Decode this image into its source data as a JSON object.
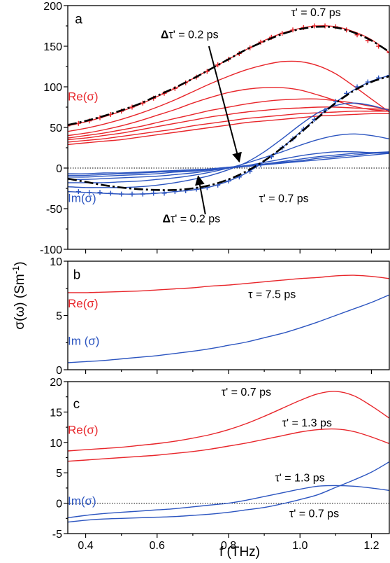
{
  "figure": {
    "ylabel": "σ(ω) (Sm",
    "ylabel_sup": "-1",
    "ylabel_tail": ")",
    "xlabel": "f (THz)"
  },
  "colors": {
    "re": "#e8262b",
    "im": "#2c55c0",
    "fit": "#000000",
    "axis": "#000000"
  },
  "chart_data": [
    {
      "panel": "a",
      "type": "line",
      "xlim": [
        0.35,
        1.25
      ],
      "ylim": [
        -100,
        200
      ],
      "x_ticks": [
        0.4,
        0.6,
        0.8,
        1.0,
        1.2
      ],
      "y_ticks": [
        -100,
        -50,
        0,
        50,
        100,
        150,
        200
      ],
      "y_tick_labels": [
        "-100",
        "-50",
        "0",
        "50",
        "100",
        "150",
        "200"
      ],
      "zero_line": true,
      "grid": false,
      "x": [
        0.35,
        0.4,
        0.45,
        0.5,
        0.55,
        0.6,
        0.65,
        0.7,
        0.75,
        0.8,
        0.85,
        0.9,
        0.95,
        1.0,
        1.05,
        1.1,
        1.15,
        1.2,
        1.25
      ],
      "series": [
        {
          "group": "re",
          "values": [
            52,
            57,
            63,
            70,
            78,
            88,
            98,
            110,
            122,
            134,
            146,
            157,
            166,
            172,
            175,
            174,
            168,
            158,
            142
          ]
        },
        {
          "group": "re",
          "values": [
            45,
            49,
            54,
            60,
            67,
            75,
            84,
            94,
            104,
            113,
            121,
            127,
            131,
            131,
            126,
            116,
            101,
            85,
            69
          ]
        },
        {
          "group": "re",
          "values": [
            40,
            43,
            47,
            52,
            58,
            65,
            72,
            80,
            87,
            93,
            97,
            99,
            99,
            96,
            90,
            83,
            76,
            72,
            70
          ]
        },
        {
          "group": "re",
          "values": [
            37,
            40,
            43,
            47,
            51,
            56,
            61,
            66,
            71,
            75,
            79,
            82,
            84,
            85,
            85,
            83,
            80,
            76,
            72
          ]
        },
        {
          "group": "re",
          "values": [
            35,
            37,
            40,
            43,
            47,
            51,
            55,
            59,
            63,
            66,
            69,
            71,
            73,
            74,
            75,
            75,
            74,
            73,
            72
          ]
        },
        {
          "group": "re",
          "values": [
            32,
            34,
            36,
            39,
            42,
            45,
            48,
            52,
            55,
            58,
            61,
            63,
            65,
            67,
            68,
            69,
            70,
            70,
            70
          ]
        },
        {
          "group": "re",
          "values": [
            29,
            31,
            33,
            35,
            38,
            41,
            44,
            47,
            50,
            53,
            56,
            58,
            60,
            62,
            64,
            65,
            66,
            67,
            67
          ]
        },
        {
          "group": "im",
          "values": [
            -29,
            -30,
            -31,
            -32,
            -32,
            -31,
            -29,
            -27,
            -23,
            -16,
            -6,
            8,
            25,
            44,
            63,
            81,
            96,
            107,
            114
          ]
        },
        {
          "group": "im",
          "values": [
            -23,
            -24,
            -24,
            -24,
            -23,
            -21,
            -18,
            -14,
            -9,
            -2,
            7,
            20,
            36,
            53,
            68,
            77,
            80,
            77,
            71
          ]
        },
        {
          "group": "im",
          "values": [
            -18,
            -18,
            -18,
            -17,
            -16,
            -14,
            -12,
            -9,
            -5,
            0,
            6,
            13,
            20,
            28,
            35,
            40,
            42,
            40,
            36
          ]
        },
        {
          "group": "im",
          "values": [
            -14,
            -14,
            -13,
            -12,
            -11,
            -10,
            -8,
            -6,
            -3,
            0,
            3,
            7,
            11,
            15,
            18,
            20,
            20,
            19,
            18
          ]
        },
        {
          "group": "im",
          "values": [
            -11,
            -11,
            -10,
            -9,
            -8,
            -7,
            -5,
            -4,
            -2,
            0,
            2,
            5,
            8,
            11,
            14,
            16,
            18,
            19,
            20
          ]
        },
        {
          "group": "im",
          "values": [
            -9,
            -9,
            -8,
            -7,
            -6,
            -5,
            -4,
            -3,
            -1,
            1,
            3,
            5,
            7,
            9,
            12,
            14,
            16,
            18,
            19
          ]
        },
        {
          "group": "im",
          "values": [
            -7,
            -7,
            -6,
            -6,
            -5,
            -4,
            -3,
            -2,
            -1,
            1,
            2,
            4,
            6,
            8,
            10,
            12,
            14,
            16,
            18
          ]
        }
      ],
      "markers": [
        {
          "group": "re",
          "x": [
            0.35,
            0.38,
            0.41,
            0.44,
            0.47,
            0.5,
            0.53,
            0.56,
            0.59,
            0.62,
            0.65,
            0.68,
            0.71,
            0.74,
            0.77,
            0.8,
            0.83,
            0.86,
            0.89,
            0.92,
            0.95,
            0.98,
            1.01,
            1.04,
            1.07,
            1.1,
            1.13,
            1.16,
            1.19,
            1.22,
            1.25
          ],
          "values": [
            52,
            55,
            58,
            62,
            66,
            70,
            75,
            80,
            86,
            92,
            98,
            105,
            112,
            119,
            127,
            134,
            141,
            148,
            155,
            161,
            166,
            170,
            173,
            175,
            175,
            174,
            170,
            164,
            157,
            150,
            142
          ]
        },
        {
          "group": "im",
          "x": [
            0.35,
            0.38,
            0.41,
            0.44,
            0.47,
            0.5,
            0.53,
            0.56,
            0.59,
            0.62,
            0.65,
            0.68,
            0.71,
            0.74,
            0.77,
            0.8,
            0.83,
            0.86,
            0.89,
            0.92,
            0.95,
            0.98,
            1.01,
            1.04,
            1.07,
            1.1,
            1.13,
            1.16,
            1.19,
            1.22,
            1.25
          ],
          "values": [
            -29,
            -29,
            -30,
            -30,
            -31,
            -32,
            -32,
            -32,
            -31,
            -31,
            -29,
            -28,
            -26,
            -24,
            -21,
            -16,
            -11,
            -4,
            4,
            14,
            25,
            36,
            48,
            60,
            71,
            82,
            92,
            100,
            106,
            111,
            114
          ]
        }
      ],
      "fits": [
        {
          "values": [
            53,
            58,
            64,
            71,
            79,
            89,
            99,
            110,
            122,
            134,
            146,
            156,
            165,
            171,
            174,
            173,
            167,
            157,
            143
          ]
        },
        {
          "values": [
            -13,
            -17,
            -21,
            -24,
            -26,
            -27,
            -27,
            -25,
            -21,
            -14,
            -4,
            9,
            25,
            43,
            62,
            80,
            95,
            106,
            113
          ]
        }
      ],
      "labels": [
        {
          "text": "a",
          "x": 0.37,
          "y": 178,
          "size": 19
        },
        {
          "text": "Re(σ)",
          "x": 0.35,
          "y": 83,
          "group": "re",
          "size": 17
        },
        {
          "text": "Im(σ)",
          "x": 0.35,
          "y": -42,
          "group": "im",
          "size": 17
        },
        {
          "text": "τ' = 0.7 ps",
          "x": 0.975,
          "y": 187,
          "size": 16
        },
        {
          "text": "Δτ' = 0.2 ps",
          "x": 0.61,
          "y": 160,
          "size": 16
        },
        {
          "text": "τ' = 0.7 ps",
          "x": 0.885,
          "y": -42,
          "size": 16
        },
        {
          "text": "Δτ' = 0.2 ps",
          "x": 0.615,
          "y": -67,
          "size": 16
        }
      ],
      "arrows": [
        {
          "from": [
            0.745,
            150
          ],
          "to": [
            0.83,
            8
          ]
        },
        {
          "from": [
            0.735,
            -57
          ],
          "to": [
            0.715,
            -10
          ]
        }
      ]
    },
    {
      "panel": "b",
      "type": "line",
      "xlim": [
        0.35,
        1.25
      ],
      "ylim": [
        0,
        10
      ],
      "x_ticks": [
        0.4,
        0.6,
        0.8,
        1.0,
        1.2
      ],
      "y_ticks": [
        0,
        5,
        10
      ],
      "y_tick_labels": [
        "0",
        "5",
        "10"
      ],
      "zero_line": false,
      "grid": false,
      "x": [
        0.35,
        0.4,
        0.45,
        0.5,
        0.55,
        0.6,
        0.65,
        0.7,
        0.75,
        0.8,
        0.85,
        0.9,
        0.95,
        1.0,
        1.05,
        1.1,
        1.15,
        1.2,
        1.25
      ],
      "series": [
        {
          "group": "re",
          "values": [
            7.1,
            7.1,
            7.15,
            7.2,
            7.25,
            7.35,
            7.45,
            7.55,
            7.7,
            7.8,
            7.95,
            8.1,
            8.25,
            8.4,
            8.5,
            8.65,
            8.7,
            8.6,
            8.4
          ]
        },
        {
          "group": "im",
          "values": [
            0.65,
            0.75,
            0.85,
            1.0,
            1.15,
            1.3,
            1.5,
            1.7,
            1.95,
            2.25,
            2.55,
            2.95,
            3.35,
            3.85,
            4.4,
            5.0,
            5.6,
            6.2,
            6.9
          ]
        }
      ],
      "markers": [],
      "fits": [],
      "labels": [
        {
          "text": "b",
          "x": 0.365,
          "y": 8.35,
          "size": 19
        },
        {
          "text": "Re(σ)",
          "x": 0.35,
          "y": 5.75,
          "group": "re",
          "size": 17
        },
        {
          "text": "τ = 7.5 ps",
          "x": 0.855,
          "y": 6.6,
          "size": 16
        },
        {
          "text": "Im (σ)",
          "x": 0.35,
          "y": 2.3,
          "group": "im",
          "size": 17
        }
      ],
      "arrows": []
    },
    {
      "panel": "c",
      "type": "line",
      "xlim": [
        0.35,
        1.25
      ],
      "ylim": [
        -5,
        20
      ],
      "x_ticks": [
        0.4,
        0.6,
        0.8,
        1.0,
        1.2
      ],
      "x_tick_labels": [
        "0.4",
        "0.6",
        "0.8",
        "1.0",
        "1.2"
      ],
      "y_ticks": [
        -5,
        0,
        5,
        10,
        15,
        20
      ],
      "y_tick_labels": [
        "-5",
        "0",
        "5",
        "10",
        "15",
        "20"
      ],
      "zero_line": true,
      "grid": false,
      "x": [
        0.35,
        0.4,
        0.45,
        0.5,
        0.55,
        0.6,
        0.65,
        0.7,
        0.75,
        0.8,
        0.85,
        0.9,
        0.95,
        1.0,
        1.05,
        1.1,
        1.15,
        1.2,
        1.25
      ],
      "series": [
        {
          "group": "re",
          "values": [
            8.6,
            8.8,
            9.0,
            9.2,
            9.5,
            9.8,
            10.2,
            10.7,
            11.3,
            12.1,
            13.1,
            14.3,
            15.6,
            16.9,
            18.0,
            18.4,
            17.7,
            16.0,
            14.0
          ]
        },
        {
          "group": "re",
          "values": [
            6.9,
            7.1,
            7.3,
            7.5,
            7.7,
            7.9,
            8.2,
            8.5,
            8.9,
            9.4,
            9.9,
            10.5,
            11.1,
            11.7,
            12.1,
            12.2,
            11.8,
            10.9,
            9.8
          ]
        },
        {
          "group": "im",
          "values": [
            -2.4,
            -2.0,
            -1.7,
            -1.5,
            -1.3,
            -1.1,
            -0.9,
            -0.6,
            -0.3,
            0.0,
            0.5,
            1.1,
            1.7,
            2.3,
            2.8,
            2.9,
            2.8,
            2.5,
            2.1
          ]
        },
        {
          "group": "im",
          "values": [
            -3.1,
            -2.8,
            -2.6,
            -2.5,
            -2.4,
            -2.3,
            -2.2,
            -2.0,
            -1.8,
            -1.5,
            -1.1,
            -0.7,
            -0.1,
            0.6,
            1.4,
            2.6,
            3.8,
            5.1,
            6.8
          ]
        }
      ],
      "markers": [],
      "fits": [],
      "labels": [
        {
          "text": "c",
          "x": 0.365,
          "y": 15.6,
          "size": 19
        },
        {
          "text": "τ' = 0.7 ps",
          "x": 0.78,
          "y": 17.7,
          "size": 16
        },
        {
          "text": "Re(σ)",
          "x": 0.35,
          "y": 11.4,
          "group": "re",
          "size": 17
        },
        {
          "text": "τ' = 1.3 ps",
          "x": 0.95,
          "y": 12.6,
          "size": 16
        },
        {
          "text": "τ' = 1.3 ps",
          "x": 0.93,
          "y": 3.6,
          "size": 16
        },
        {
          "text": "Im(σ)",
          "x": 0.35,
          "y": -0.3,
          "group": "im",
          "size": 17
        },
        {
          "text": "τ' = 0.7 ps",
          "x": 0.97,
          "y": -2.3,
          "size": 16
        }
      ],
      "arrows": []
    }
  ]
}
